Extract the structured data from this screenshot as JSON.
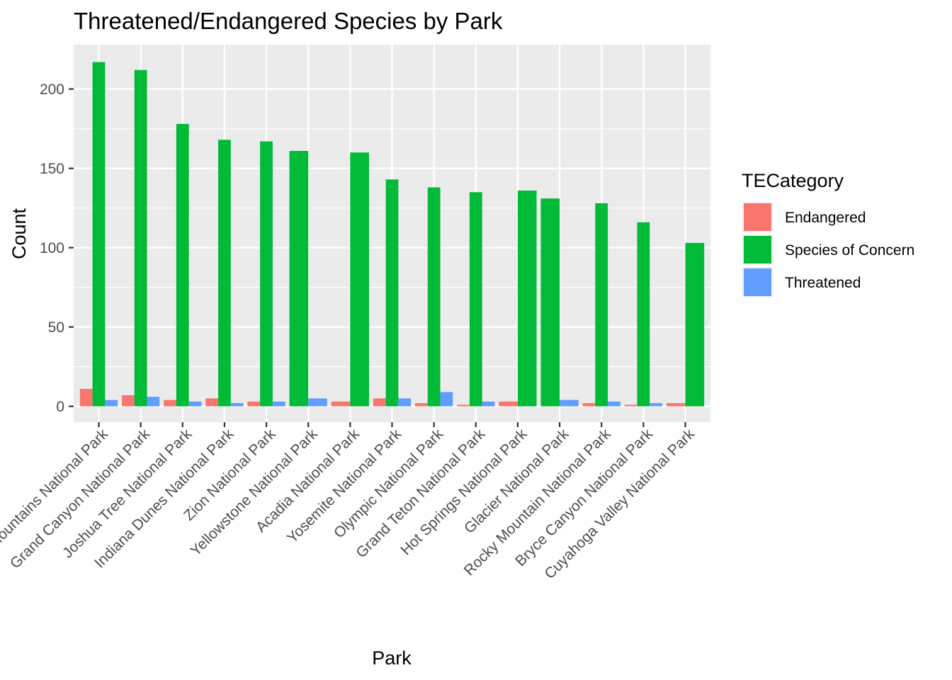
{
  "chart_data": {
    "type": "bar",
    "title": "Threatened/Endangered Species by Park",
    "xlabel": "Park",
    "ylabel": "Count",
    "ylim": [
      -10,
      228
    ],
    "yticks": [
      0,
      50,
      100,
      150,
      200
    ],
    "grid": true,
    "legend": {
      "title": "TECategory",
      "position": "right"
    },
    "categories": [
      "Great Smoky Mountains National Park",
      "Grand Canyon National Park",
      "Joshua Tree National Park",
      "Indiana Dunes National Park",
      "Zion National Park",
      "Yellowstone National Park",
      "Acadia National Park",
      "Yosemite National Park",
      "Olympic National Park",
      "Grand Teton National Park",
      "Hot Springs National Park",
      "Glacier National Park",
      "Rocky Mountain National Park",
      "Bryce Canyon National Park",
      "Cuyahoga Valley National Park"
    ],
    "series": [
      {
        "name": "Endangered",
        "color": "#F8766D",
        "values": [
          11,
          7,
          4,
          5,
          3,
          null,
          3,
          5,
          2,
          1,
          3,
          null,
          2,
          1,
          2
        ]
      },
      {
        "name": "Species of Concern",
        "color": "#00BA38",
        "values": [
          217,
          212,
          178,
          168,
          167,
          161,
          160,
          143,
          138,
          135,
          136,
          131,
          128,
          116,
          103
        ]
      },
      {
        "name": "Threatened",
        "color": "#619CFF",
        "values": [
          4,
          6,
          3,
          2,
          3,
          5,
          null,
          5,
          9,
          3,
          null,
          4,
          3,
          2,
          null
        ]
      }
    ]
  }
}
